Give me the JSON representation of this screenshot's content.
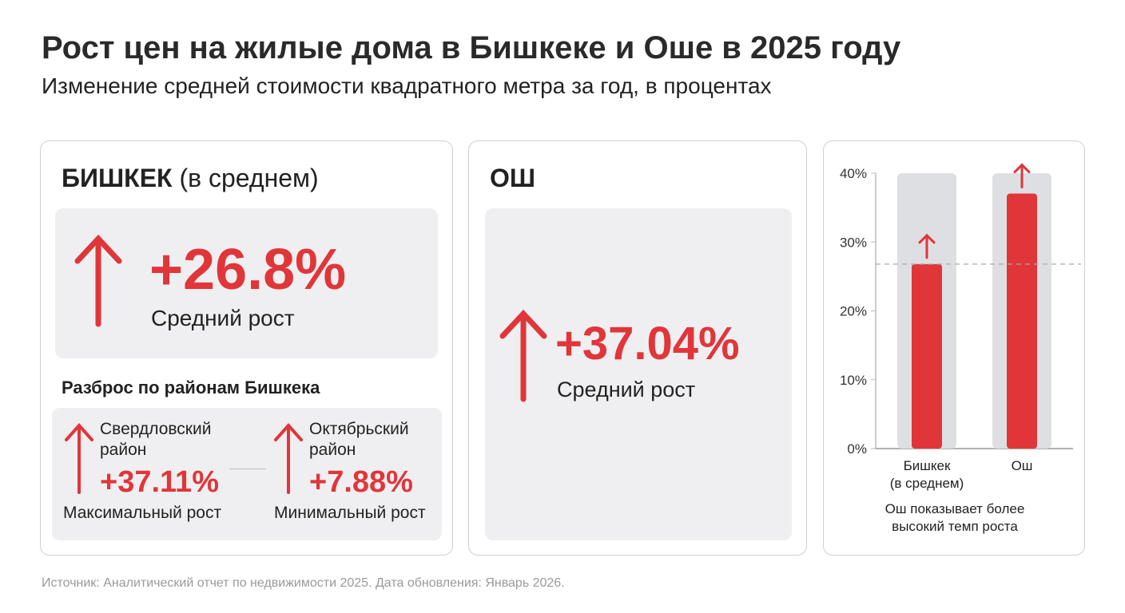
{
  "title": "Рост цен на жилые дома в Бишкеке и Оше в 2025 году",
  "subtitle": "Изменение средней стоимости квадратного метра за год, в процентах",
  "bishkek": {
    "name": "БИШКЕК",
    "qualifier": "(в среднем)",
    "value": "+26.8%",
    "value_label": "Средний рост",
    "districts_title": "Разброс по районам Бишкека",
    "districts": [
      {
        "name_line1": "Свердловский",
        "name_line2": "район",
        "value": "+37.11%",
        "label": "Максимальный рост"
      },
      {
        "name_line1": "Октябрьский",
        "name_line2": "район",
        "value": "+7.88%",
        "label": "Минимальный рост"
      }
    ]
  },
  "osh": {
    "name": "ОШ",
    "value": "+37.04%",
    "value_label": "Средний рост"
  },
  "chart_data": {
    "type": "bar",
    "categories": [
      "Бишкек (в среднем)",
      "Ош"
    ],
    "category_lines": [
      [
        "Бишкек",
        "(в среднем)"
      ],
      [
        "Ош"
      ]
    ],
    "values": [
      26.8,
      37.04
    ],
    "ylim": [
      0,
      40
    ],
    "yticks": [
      "0%",
      "10%",
      "20%",
      "30%",
      "40%"
    ],
    "reference_line": 26.8,
    "annotation": [
      "Ош показывает более",
      "высокий темп роста"
    ],
    "colors": {
      "bar": "#e0363a",
      "track": "#dedfe2"
    }
  },
  "source": "Источник: Аналитический отчет по недвижимости 2025. Дата обновления: Январь 2026."
}
